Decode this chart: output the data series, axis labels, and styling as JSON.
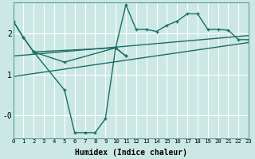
{
  "xlabel": "Humidex (Indice chaleur)",
  "bg_color": "#cce8e5",
  "grid_color": "#b0d8d4",
  "line_color": "#1a6e66",
  "xlim": [
    0,
    23
  ],
  "ylim": [
    -0.55,
    2.75
  ],
  "xticks": [
    0,
    1,
    2,
    3,
    4,
    5,
    6,
    7,
    8,
    9,
    10,
    11,
    12,
    13,
    14,
    15,
    16,
    17,
    18,
    19,
    20,
    21,
    22,
    23
  ],
  "yticks": [
    0,
    1,
    2
  ],
  "ytick_labels": [
    "-0",
    "1",
    "2"
  ],
  "series": [
    {
      "x": [
        0,
        1,
        2,
        10,
        11,
        12,
        13,
        14,
        15,
        16,
        17,
        18,
        19,
        20,
        21,
        22,
        23
      ],
      "y": [
        2.3,
        1.9,
        1.55,
        1.65,
        2.7,
        2.1,
        2.1,
        2.05,
        2.2,
        2.3,
        2.48,
        2.48,
        2.1,
        2.1,
        2.08,
        1.85,
        1.85
      ],
      "marker": true
    },
    {
      "x": [
        0,
        1,
        2,
        5,
        10,
        11
      ],
      "y": [
        2.3,
        1.9,
        1.55,
        1.3,
        1.65,
        1.45
      ],
      "marker": true
    },
    {
      "x": [
        2,
        5,
        6,
        7,
        8,
        9,
        10,
        11
      ],
      "y": [
        1.55,
        0.62,
        -0.42,
        -0.42,
        -0.42,
        -0.08,
        1.65,
        1.45
      ],
      "marker": true
    },
    {
      "x": [
        0,
        23
      ],
      "y": [
        0.95,
        1.78
      ],
      "marker": false
    },
    {
      "x": [
        0,
        23
      ],
      "y": [
        1.45,
        1.95
      ],
      "marker": false
    }
  ]
}
